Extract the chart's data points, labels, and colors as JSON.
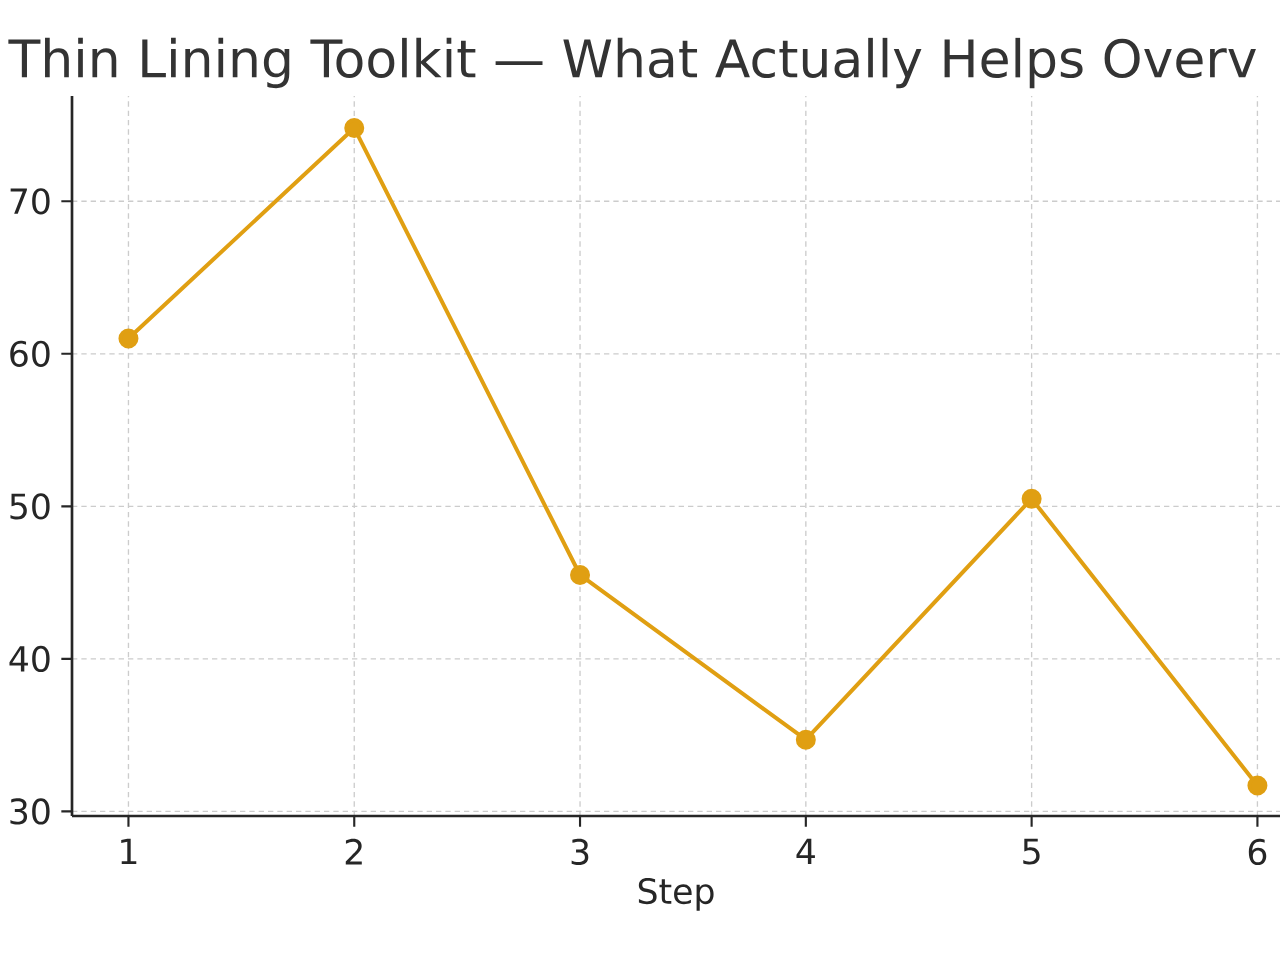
{
  "chart_data": {
    "type": "line",
    "title": "Thin Lining Toolkit — What Actually Helps Overv",
    "xlabel": "Step",
    "x": [
      1,
      2,
      3,
      4,
      5,
      6
    ],
    "series": [
      {
        "color": "#e09f12",
        "values": [
          61,
          74.8,
          45.5,
          34.7,
          50.5,
          31.7
        ]
      }
    ],
    "xlim": [
      0.75,
      6.1
    ],
    "ylim": [
      29.7,
      76.9
    ],
    "xticks": [
      1,
      2,
      3,
      4,
      5,
      6
    ],
    "yticks": [
      30,
      40,
      50,
      60,
      70
    ],
    "grid": true,
    "marker": "circle",
    "line_style": "solid"
  }
}
